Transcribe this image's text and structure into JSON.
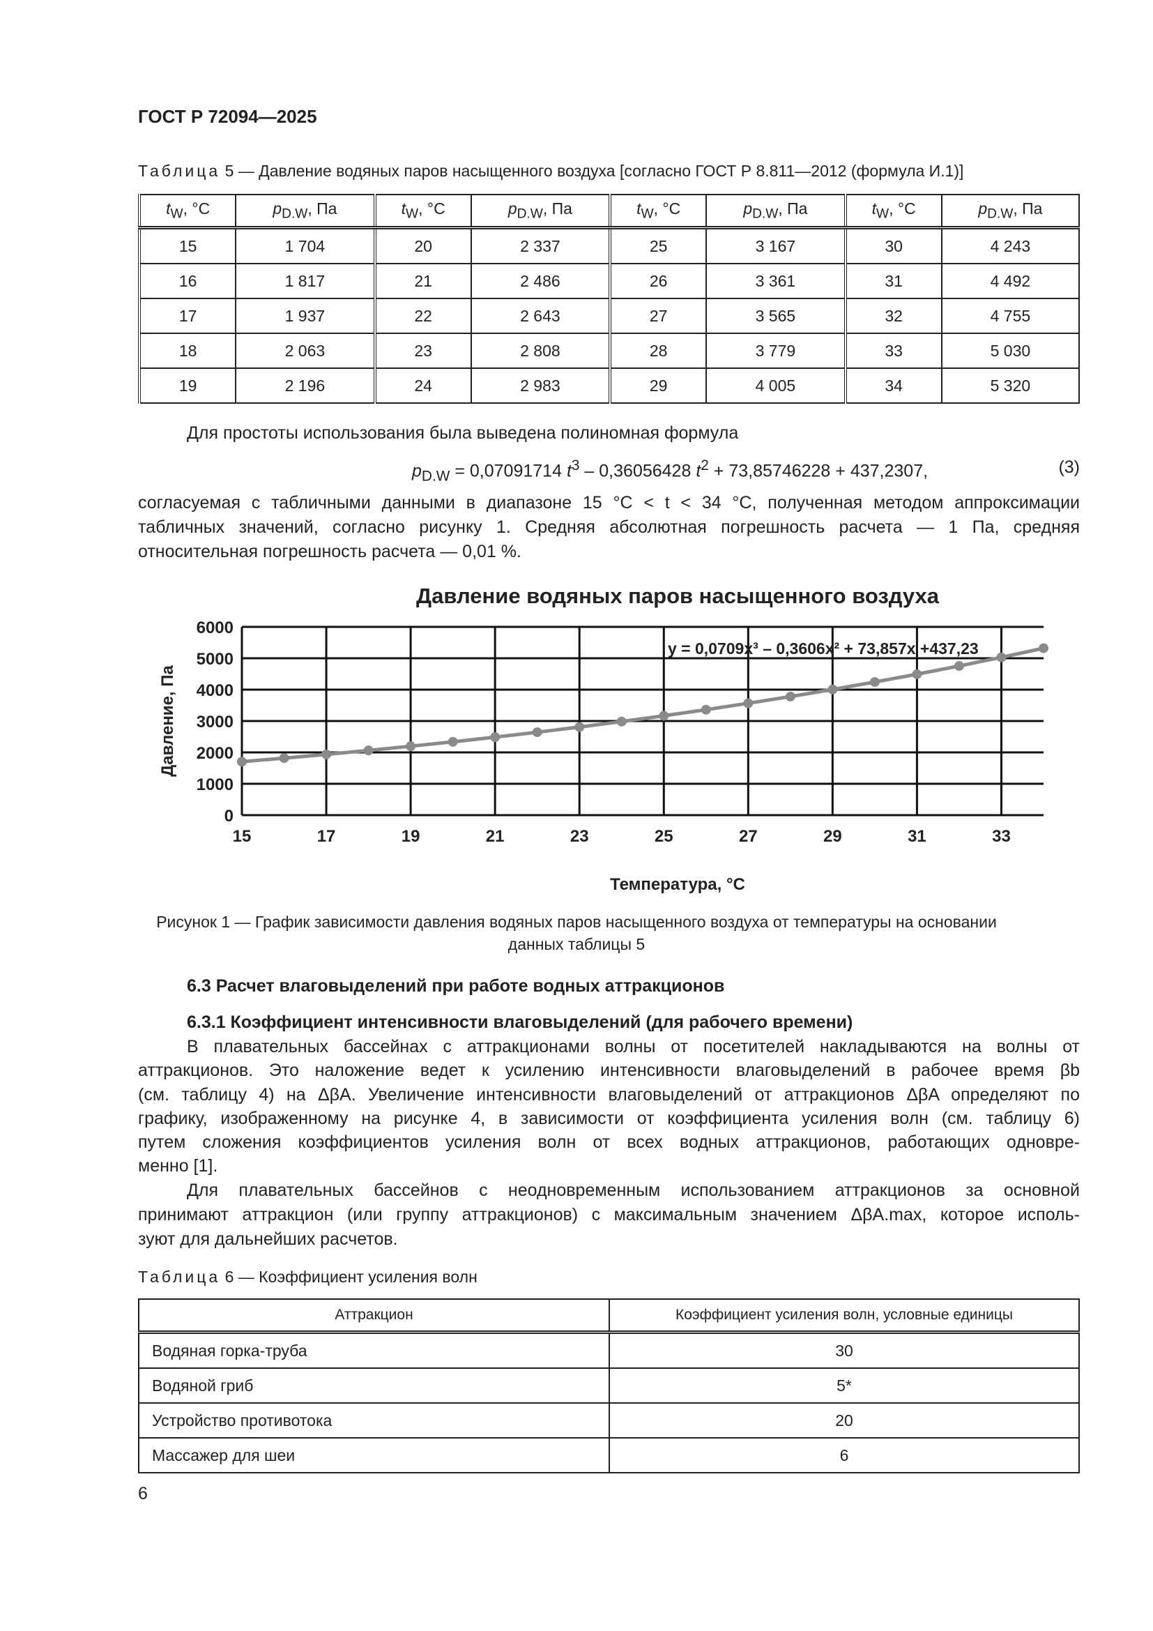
{
  "header": {
    "doc_id": "ГОСТ Р 72094—2025"
  },
  "table5": {
    "caption_label": "Таблица",
    "caption_text": "5 — Давление водяных паров насыщенного воздуха [согласно ГОСТ Р 8.811—2012 (формула И.1)]",
    "col_t": "t",
    "col_t_sub": "W",
    "col_t_unit": ", °C",
    "col_p": "p",
    "col_p_sub": "D.W",
    "col_p_unit": ", Па",
    "rows": [
      [
        "15",
        "1 704",
        "20",
        "2 337",
        "25",
        "3 167",
        "30",
        "4 243"
      ],
      [
        "16",
        "1 817",
        "21",
        "2 486",
        "26",
        "3 361",
        "31",
        "4 492"
      ],
      [
        "17",
        "1 937",
        "22",
        "2 643",
        "27",
        "3 565",
        "32",
        "4 755"
      ],
      [
        "18",
        "2 063",
        "23",
        "2 808",
        "28",
        "3 779",
        "33",
        "5 030"
      ],
      [
        "19",
        "2 196",
        "24",
        "2 983",
        "29",
        "4 005",
        "34",
        "5 320"
      ]
    ]
  },
  "para1": "Для простоты использования была выведена полиномная формула",
  "formula": {
    "lhs": "p",
    "lhs_sub": "D.W",
    "a": " = 0,07091714 ",
    "t1": "t",
    "p1": "3",
    "b": " – 0,36056428  ",
    "t2": "t",
    "p2": "2",
    "c": " + 73,85746228 + 437,2307,",
    "number": "(3)"
  },
  "para2_lines": [
    "согласуемая с табличными данными в диапазоне 15 °C < t < 34 °C, полученная методом аппроксимации",
    "табличных значений, согласно рисунку 1. Средняя абсолютная погрешность расчета — 1 Па, средняя",
    "относительная погрешность расчета — 0,01 %."
  ],
  "chart_data": {
    "type": "line",
    "title": "Давление водяных паров насыщенного воздуха",
    "xlabel": "Температура, °C",
    "ylabel": "Давление, Па",
    "x": [
      15,
      16,
      17,
      18,
      19,
      20,
      21,
      22,
      23,
      24,
      25,
      26,
      27,
      28,
      29,
      30,
      31,
      32,
      33,
      34
    ],
    "values": [
      1704,
      1817,
      1937,
      2063,
      2196,
      2337,
      2486,
      2643,
      2808,
      2983,
      3167,
      3361,
      3565,
      3779,
      4005,
      4243,
      4492,
      4755,
      5030,
      5320
    ],
    "xticks": [
      "15",
      "17",
      "19",
      "21",
      "23",
      "25",
      "27",
      "29",
      "31",
      "33"
    ],
    "yticks": [
      "0",
      "1000",
      "2000",
      "3000",
      "4000",
      "5000",
      "6000"
    ],
    "xlim": [
      15,
      34
    ],
    "ylim": [
      0,
      6000
    ],
    "grid": true,
    "annotation": "y = 0,0709x³ – 0,3606x² + 73,857x +437,23",
    "line_color": "#8a8a8a"
  },
  "figure_caption": [
    "Рисунок 1 — График зависимости давления водяных паров насыщенного воздуха от температуры на основании",
    "данных таблицы 5"
  ],
  "section_6_3": "6.3 Расчет влаговыделений при работе водных аттракционов",
  "section_6_3_1": "6.3.1 Коэффициент интенсивности влаговыделений (для рабочего времени)",
  "para3_lines": [
    "В плавательных бассейнах с аттракционами волны от посетителей накладываются на волны от",
    "аттракционов. Это наложение ведет к усилению интенсивности влаговыделений в рабочее время βb",
    "(см. таблицу 4) на ΔβA. Увеличение интенсивности влаговыделений от аттракционов ΔβA определяют по",
    "графику, изображенному на рисунке 4, в зависимости от коэффициента усиления волн (см. таблицу 6)",
    "путем сложения коэффициентов усиления волн от всех водных аттракционов, работающих одновре-",
    "менно [1]."
  ],
  "para4_lines": [
    "Для плавательных бассейнов с неодновременным использованием аттракционов за основной",
    "принимают аттракцион (или группу аттракционов) с максимальным значением ΔβA.max, которое исполь-",
    "зуют для дальнейших расчетов."
  ],
  "table6": {
    "caption_label": "Таблица",
    "caption_text": "6 — Коэффициент усиления волн",
    "headers": [
      "Аттракцион",
      "Коэффициент усиления волн, условные единицы"
    ],
    "rows": [
      [
        "Водяная горка-труба",
        "30"
      ],
      [
        "Водяной гриб",
        "5*"
      ],
      [
        "Устройство противотока",
        "20"
      ],
      [
        "Массажер для шеи",
        "6"
      ]
    ]
  },
  "page_number": "6"
}
